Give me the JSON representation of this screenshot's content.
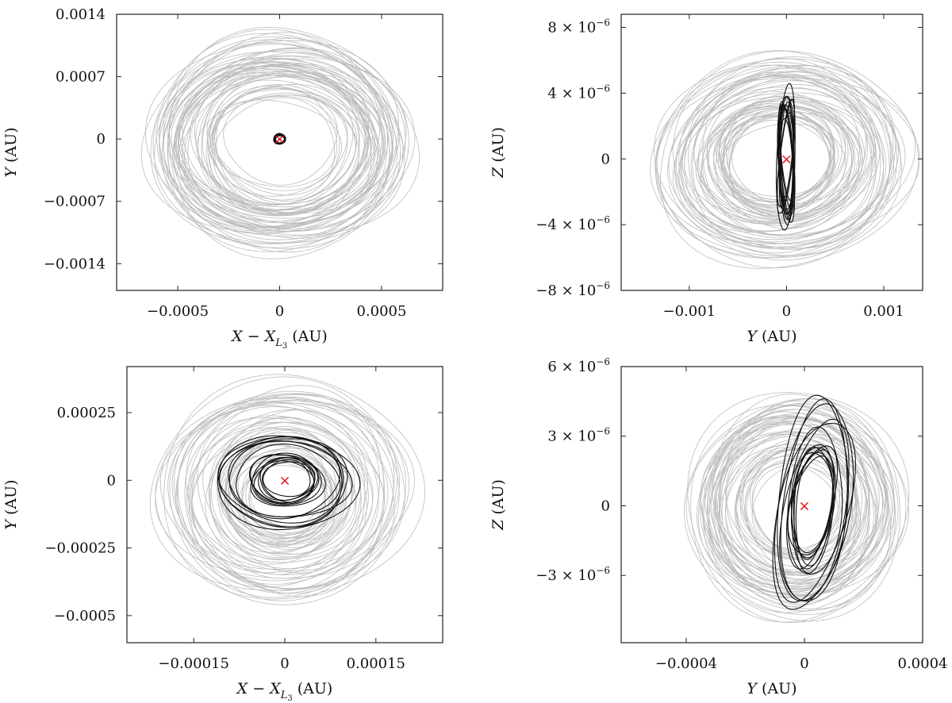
{
  "chart_data": [
    {
      "id": "top-left",
      "type": "line",
      "xlabel": "X − X_{L_3} (AU)",
      "ylabel": "Y (AU)",
      "xlim": [
        -0.0008,
        0.0008
      ],
      "ylim": [
        -0.0017,
        0.0014
      ],
      "xticks": [
        {
          "value": -0.0005,
          "label": "−0.0005"
        },
        {
          "value": 0,
          "label": "0"
        },
        {
          "value": 0.0005,
          "label": "0.0005"
        }
      ],
      "yticks": [
        {
          "value": 0.0014,
          "label": "0.0014"
        },
        {
          "value": 0.0007,
          "label": "0.0007"
        },
        {
          "value": 0,
          "label": "0"
        },
        {
          "value": -0.0007,
          "label": "−0.0007"
        },
        {
          "value": -0.0014,
          "label": "−0.0014"
        }
      ],
      "series": [
        {
          "role": "grey",
          "color": "#bdbdbd",
          "shape": "ellipse",
          "rx": 0.00064,
          "ry": 0.00118,
          "cx": 0.0,
          "cy": -5e-05,
          "tilt": 0,
          "count": 60,
          "spread": 0.55
        },
        {
          "role": "black",
          "color": "#111111",
          "shape": "ellipse",
          "rx": 3e-05,
          "ry": 6e-05,
          "cx": 0.0,
          "cy": 0.0,
          "tilt": 0,
          "count": 10,
          "spread": 0.35
        }
      ],
      "marker": {
        "x": 0,
        "y": 0,
        "color": "#e8141c",
        "symbol": "×"
      }
    },
    {
      "id": "top-right",
      "type": "line",
      "xlabel": "Y (AU)",
      "ylabel": "Z (AU)",
      "xlim": [
        -0.0017,
        0.0014
      ],
      "ylim": [
        -8e-06,
        8.8e-06
      ],
      "xticks": [
        {
          "value": -0.001,
          "label": "−0.001"
        },
        {
          "value": 0,
          "label": "0"
        },
        {
          "value": 0.001,
          "label": "0.001"
        }
      ],
      "yticks": [
        {
          "value": 8e-06,
          "label": "8 × 10",
          "exp": "−6"
        },
        {
          "value": 4e-06,
          "label": "4 × 10",
          "exp": "−6"
        },
        {
          "value": 0,
          "label": "0"
        },
        {
          "value": -4e-06,
          "label": "−4 × 10",
          "exp": "−6"
        },
        {
          "value": -8e-06,
          "label": "−8 × 10",
          "exp": "−6"
        }
      ],
      "series": [
        {
          "role": "grey",
          "color": "#bdbdbd",
          "shape": "ellipse",
          "rx": 0.00125,
          "ry": 6e-06,
          "cx": -5e-05,
          "cy": 0.0,
          "tilt": -0.12,
          "count": 60,
          "spread": 0.6
        },
        {
          "role": "black",
          "color": "#111111",
          "shape": "ellipse",
          "rx": 9e-05,
          "ry": 4.2e-06,
          "cx": 0.0,
          "cy": 0.0,
          "tilt": 0,
          "count": 14,
          "spread": 0.4
        }
      ],
      "marker": {
        "x": 0,
        "y": 0,
        "color": "#e8141c",
        "symbol": "×"
      }
    },
    {
      "id": "bottom-left",
      "type": "line",
      "xlabel": "X − X_{L_3} (AU)",
      "ylabel": "Y (AU)",
      "xlim": [
        -0.00026,
        0.00026
      ],
      "ylim": [
        -0.0006,
        0.00042
      ],
      "xticks": [
        {
          "value": -0.00015,
          "label": "−0.00015"
        },
        {
          "value": 0,
          "label": "0"
        },
        {
          "value": 0.00015,
          "label": "0.00015"
        }
      ],
      "yticks": [
        {
          "value": 0.00025,
          "label": "0.00025"
        },
        {
          "value": 0,
          "label": "0"
        },
        {
          "value": -0.00025,
          "label": "−0.00025"
        },
        {
          "value": -0.0005,
          "label": "−0.0005"
        }
      ],
      "series": [
        {
          "role": "grey",
          "color": "#bdbdbd",
          "shape": "ellipse",
          "rx": 0.000205,
          "ry": 0.00041,
          "cx": 0.0,
          "cy": -5e-05,
          "tilt": 0,
          "count": 55,
          "spread": 0.7
        },
        {
          "role": "black",
          "color": "#111111",
          "shape": "ellipse",
          "rx": 0.000112,
          "ry": 0.000178,
          "cx": 0.0,
          "cy": 0.0,
          "tilt": 0,
          "count": 16,
          "spread": 0.75
        }
      ],
      "marker": {
        "x": 0,
        "y": 0,
        "color": "#e8141c",
        "symbol": "×"
      }
    },
    {
      "id": "bottom-right",
      "type": "line",
      "xlabel": "Y (AU)",
      "ylabel": "Z (AU)",
      "xlim": [
        -0.00062,
        0.0004
      ],
      "ylim": [
        -5.9e-06,
        6e-06
      ],
      "xticks": [
        {
          "value": -0.0004,
          "label": "−0.0004"
        },
        {
          "value": 0,
          "label": "0"
        },
        {
          "value": 0.0004,
          "label": "0.0004"
        }
      ],
      "yticks": [
        {
          "value": 6e-06,
          "label": "6 × 10",
          "exp": "−6"
        },
        {
          "value": 3e-06,
          "label": "3 × 10",
          "exp": "−6"
        },
        {
          "value": 0,
          "label": "0"
        },
        {
          "value": -3e-06,
          "label": "−3 × 10",
          "exp": "−6"
        }
      ],
      "series": [
        {
          "role": "grey",
          "color": "#bdbdbd",
          "shape": "ellipse",
          "rx": 0.00036,
          "ry": 4.6e-06,
          "cx": -3e-05,
          "cy": 0.0,
          "tilt": 0,
          "count": 55,
          "spread": 0.6
        },
        {
          "role": "black",
          "color": "#111111",
          "shape": "ellipse",
          "rx": 0.00012,
          "ry": 4.4e-06,
          "cx": 3e-05,
          "cy": 0.0,
          "tilt": 0.15,
          "count": 14,
          "spread": 0.55
        }
      ],
      "marker": {
        "x": 0,
        "y": 0,
        "color": "#e8141c",
        "symbol": "×"
      }
    }
  ]
}
